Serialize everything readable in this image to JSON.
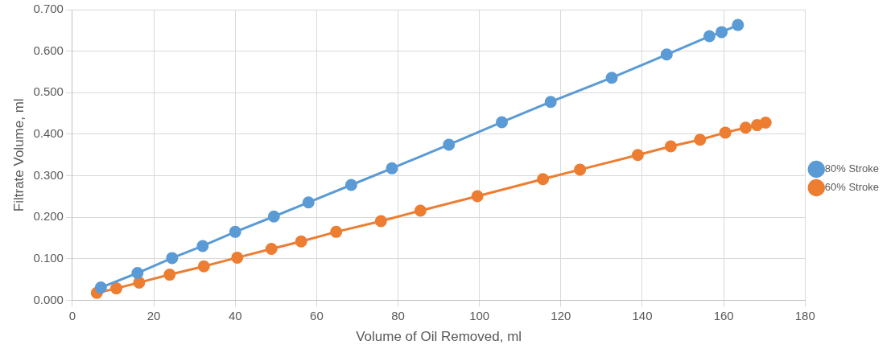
{
  "chart_data": {
    "type": "line",
    "xlabel": "Volume of Oil Removed, ml",
    "ylabel": "Filtrate Volume, ml",
    "xlim": [
      0,
      180
    ],
    "xticks": [
      0,
      20,
      40,
      60,
      80,
      100,
      120,
      140,
      160,
      180
    ],
    "ylim": [
      0,
      0.7
    ],
    "yticks": [
      {
        "value": 0,
        "label": "0.000"
      },
      {
        "value": 0.1,
        "label": "0.100"
      },
      {
        "value": 0.2,
        "label": "0.200"
      },
      {
        "value": 0.3,
        "label": "0.300"
      },
      {
        "value": 0.4,
        "label": "0.400"
      },
      {
        "value": 0.5,
        "label": "0.500"
      },
      {
        "value": 0.6,
        "label": "0.600"
      },
      {
        "value": 0.7,
        "label": "0.700"
      }
    ],
    "grid": true,
    "legend": "right",
    "marker": "circle",
    "line_style": "solid",
    "series": [
      {
        "name": "80% Stroke",
        "color": "#5b9bd5",
        "x": [
          7,
          16,
          24.5,
          32,
          40,
          49.5,
          58,
          68.5,
          78.5,
          92.5,
          105.5,
          117.5,
          132.5,
          146,
          156.5,
          159.5,
          163.5
        ],
        "values": [
          0.031,
          0.066,
          0.102,
          0.131,
          0.165,
          0.202,
          0.236,
          0.278,
          0.318,
          0.375,
          0.429,
          0.478,
          0.536,
          0.592,
          0.636,
          0.646,
          0.663
        ]
      },
      {
        "name": "60% Stroke",
        "color": "#ed7d31",
        "x": [
          6,
          10.8,
          16.4,
          23.9,
          32.3,
          40.5,
          48.9,
          56.2,
          64.8,
          75.8,
          85.5,
          99.5,
          115.6,
          124.7,
          138.9,
          147,
          154.2,
          160.4,
          165.4,
          168.2,
          170.3
        ],
        "values": [
          0.018,
          0.029,
          0.043,
          0.062,
          0.082,
          0.103,
          0.124,
          0.142,
          0.165,
          0.191,
          0.216,
          0.251,
          0.292,
          0.315,
          0.35,
          0.371,
          0.387,
          0.404,
          0.416,
          0.422,
          0.428
        ]
      }
    ]
  }
}
